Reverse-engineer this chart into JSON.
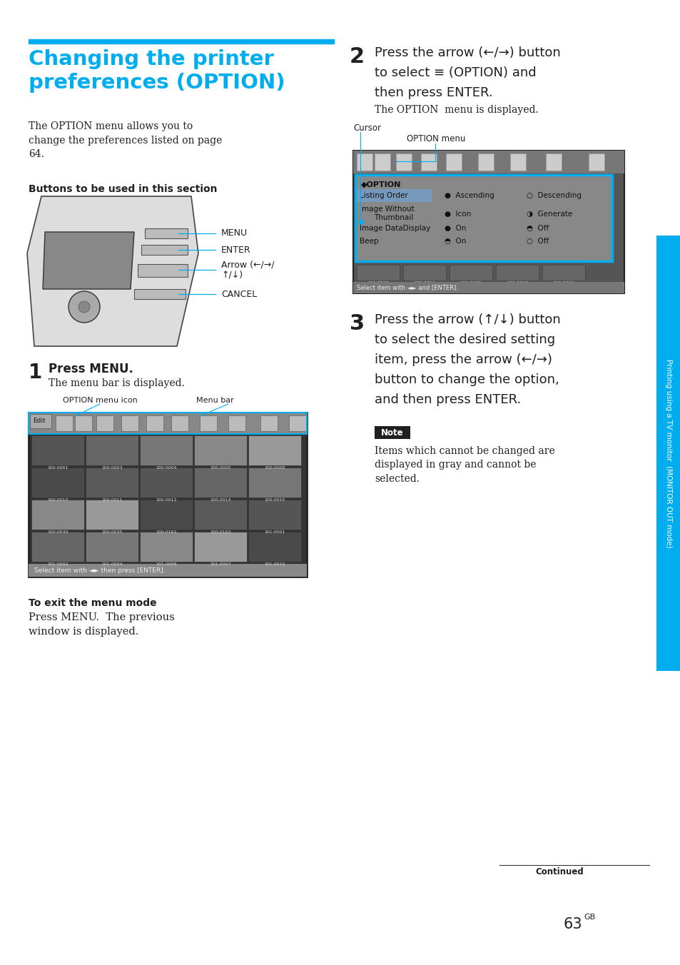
{
  "page_bg": "#ffffff",
  "title_color": "#00AEEF",
  "title_bar_color": "#00AEEF",
  "body_text_color": "#231f20",
  "sidebar_color": "#00AEEF",
  "note_bg": "#231f20",
  "note_text_color": "#ffffff",
  "option_menu_border": "#00AEEF",
  "callout_color": "#00AEEF",
  "screen_border": "#00AEEF",
  "toolbar_bg": "#aaaaaa",
  "screen_bg": "#888888",
  "option_box_bg": "#999999",
  "listing_row_bg": "#7799bb",
  "thumb_colors": [
    "#555555",
    "#666666",
    "#777777",
    "#888888",
    "#999999"
  ],
  "thumb_labels_row1": [
    "100-0001",
    "100-0003",
    "100-0004",
    "100-0005",
    "100-0008"
  ],
  "thumb_labels_row2": [
    "100-0010",
    "100-0011",
    "100-0012",
    "100-0014",
    "100-0015"
  ],
  "thumb_labels_row3": [
    "100-0030",
    "100-0035",
    "100-0162",
    "100-0103",
    "101-0001"
  ],
  "thumb_labels_row4": [
    "101-0002",
    "101-0004",
    "101-0008",
    "101-0007",
    "101-0010"
  ]
}
